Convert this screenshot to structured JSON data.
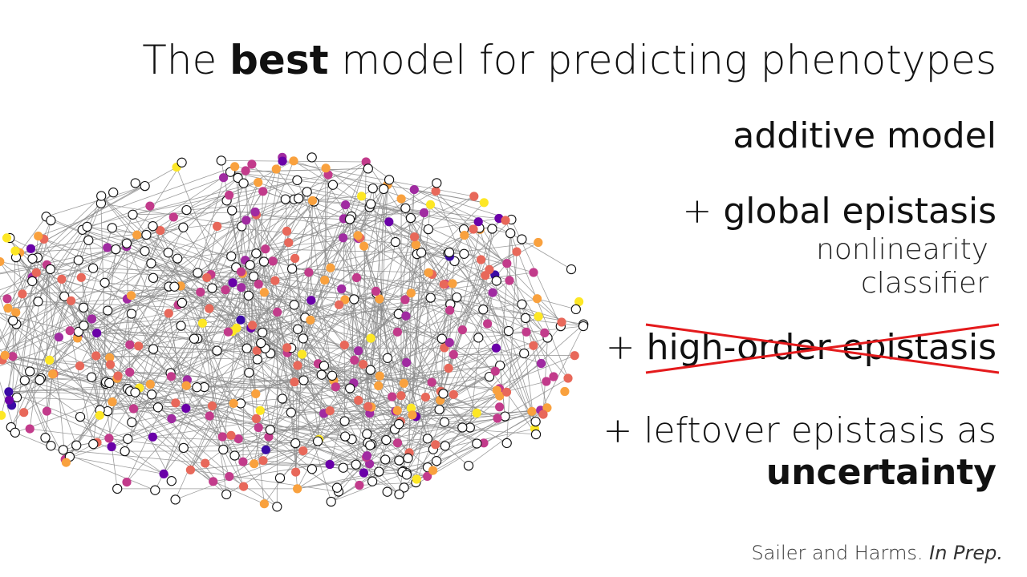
{
  "title": {
    "prefix": "The ",
    "emphasis": "best",
    "suffix": " model for predicting phenotypes"
  },
  "items": {
    "additive": "additive model",
    "global": {
      "plus": "+ ",
      "label": "global epistasis"
    },
    "global_sub1": "nonlinearity",
    "global_sub2": "classifier",
    "high_order": {
      "plus": "+ ",
      "label": "high-order epistasis",
      "struck": true
    },
    "leftover": {
      "line1": "+ leftover epistasis as",
      "line2": "uncertainty"
    }
  },
  "citation": {
    "authors": "Sailer and Harms. ",
    "venue": "In Prep."
  },
  "colors": {
    "edge": "#8c8c8c",
    "strike": "#e41a1c",
    "node_palette": [
      "#ffffff",
      "#fde725",
      "#f9a13e",
      "#e8685a",
      "#c23b8b",
      "#a02ba1",
      "#6a00a8",
      "#3b0aa6"
    ]
  }
}
